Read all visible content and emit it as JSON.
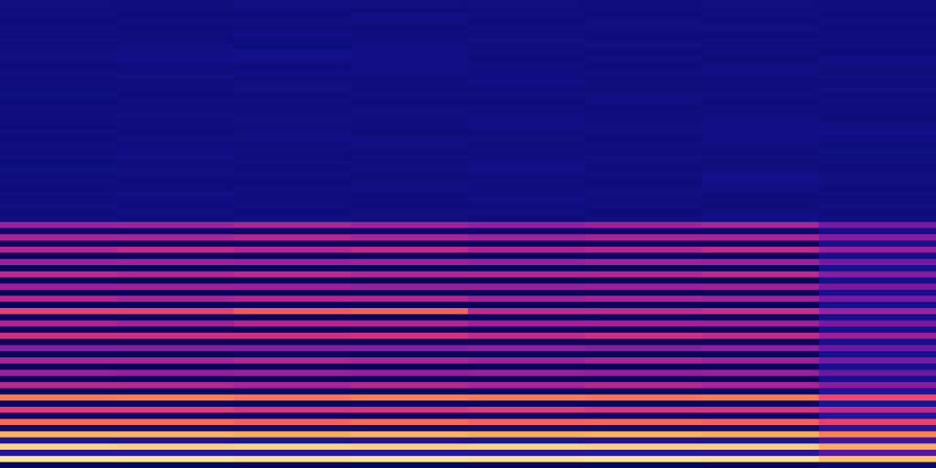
{
  "chart_data": {
    "type": "heatmap",
    "tick_labels": false,
    "grid": false,
    "x_categories": [
      null,
      null,
      null,
      null,
      null,
      null,
      null,
      null
    ],
    "y_categories": [
      null,
      null,
      null,
      null,
      null,
      null,
      null,
      null,
      null,
      null,
      null,
      null,
      null,
      null,
      null,
      null,
      null,
      null,
      null,
      null,
      null,
      null,
      null,
      null,
      null,
      null,
      null,
      null,
      null,
      null,
      null,
      null,
      null,
      null,
      null,
      null,
      null,
      null,
      null,
      null,
      null,
      null,
      null,
      null,
      null,
      null,
      null,
      null,
      null,
      null,
      null,
      null,
      null,
      null,
      null,
      null,
      null,
      null,
      null,
      null,
      null,
      null,
      null,
      null,
      null,
      null,
      null,
      null,
      null,
      null,
      null,
      null,
      null,
      null,
      null,
      null
    ],
    "value_range": [
      0,
      100
    ],
    "cells": [
      [
        6,
        6,
        6,
        6,
        6,
        6,
        6,
        10
      ],
      [
        96,
        96,
        95,
        96,
        95,
        96,
        95,
        88
      ],
      [
        25,
        24,
        25,
        24,
        25,
        24,
        25,
        35
      ],
      [
        92,
        91,
        92,
        91,
        92,
        91,
        91,
        84
      ],
      [
        20,
        20,
        20,
        20,
        20,
        20,
        20,
        30
      ],
      [
        85,
        85,
        84,
        85,
        84,
        85,
        84,
        76
      ],
      [
        12,
        12,
        12,
        12,
        12,
        12,
        12,
        24
      ],
      [
        72,
        72,
        70,
        72,
        70,
        71,
        70,
        62
      ],
      [
        10,
        10,
        10,
        10,
        10,
        10,
        10,
        22
      ],
      [
        60,
        60,
        58,
        58,
        60,
        58,
        58,
        52
      ],
      [
        8,
        8,
        8,
        8,
        8,
        8,
        8,
        20
      ],
      [
        75,
        76,
        74,
        76,
        75,
        74,
        75,
        64
      ],
      [
        8,
        8,
        8,
        8,
        8,
        8,
        8,
        20
      ],
      [
        50,
        50,
        48,
        50,
        48,
        50,
        48,
        42
      ],
      [
        6,
        6,
        6,
        6,
        6,
        6,
        6,
        18
      ],
      [
        45,
        44,
        45,
        44,
        45,
        44,
        45,
        38
      ],
      [
        6,
        6,
        6,
        6,
        6,
        6,
        6,
        18
      ],
      [
        48,
        48,
        50,
        48,
        46,
        48,
        46,
        40
      ],
      [
        6,
        6,
        6,
        6,
        6,
        6,
        6,
        18
      ],
      [
        42,
        42,
        42,
        42,
        44,
        42,
        44,
        38
      ],
      [
        6,
        6,
        6,
        6,
        6,
        6,
        6,
        18
      ],
      [
        55,
        54,
        55,
        56,
        52,
        54,
        52,
        45
      ],
      [
        6,
        6,
        6,
        6,
        6,
        6,
        6,
        18
      ],
      [
        48,
        46,
        50,
        50,
        46,
        46,
        46,
        40
      ],
      [
        6,
        6,
        6,
        6,
        6,
        6,
        6,
        18
      ],
      [
        62,
        62,
        68,
        70,
        52,
        52,
        54,
        45
      ],
      [
        6,
        6,
        6,
        6,
        6,
        6,
        6,
        18
      ],
      [
        50,
        48,
        50,
        50,
        46,
        48,
        46,
        40
      ],
      [
        6,
        6,
        6,
        6,
        6,
        6,
        6,
        18
      ],
      [
        45,
        46,
        45,
        44,
        44,
        45,
        46,
        40
      ],
      [
        6,
        6,
        6,
        6,
        6,
        6,
        6,
        18
      ],
      [
        52,
        50,
        52,
        50,
        50,
        50,
        52,
        42
      ],
      [
        6,
        6,
        6,
        6,
        6,
        6,
        6,
        18
      ],
      [
        45,
        46,
        45,
        46,
        44,
        46,
        45,
        40
      ],
      [
        7,
        7,
        7,
        7,
        7,
        7,
        7,
        18
      ],
      [
        50,
        52,
        50,
        52,
        48,
        50,
        52,
        44
      ],
      [
        8,
        8,
        8,
        8,
        8,
        8,
        8,
        18
      ],
      [
        48,
        48,
        50,
        48,
        46,
        48,
        48,
        42
      ],
      [
        10,
        10,
        10,
        10,
        10,
        10,
        10,
        18
      ],
      [
        45,
        46,
        48,
        46,
        44,
        46,
        48,
        40
      ],
      [
        15,
        14,
        16,
        15,
        14,
        15,
        16,
        15
      ],
      [
        14,
        15,
        14,
        16,
        15,
        14,
        15,
        14
      ],
      [
        16,
        14,
        15,
        14,
        14,
        15,
        14,
        16
      ],
      [
        14,
        15,
        14,
        15,
        16,
        14,
        15,
        14
      ],
      [
        15,
        16,
        15,
        14,
        15,
        16,
        14,
        15
      ],
      [
        14,
        14,
        15,
        16,
        14,
        15,
        15,
        14
      ],
      [
        15,
        14,
        14,
        15,
        15,
        14,
        17,
        16
      ],
      [
        14,
        15,
        16,
        14,
        14,
        15,
        17,
        15
      ],
      [
        16,
        15,
        14,
        15,
        16,
        14,
        15,
        14
      ],
      [
        14,
        14,
        15,
        14,
        15,
        15,
        14,
        15
      ],
      [
        15,
        16,
        14,
        15,
        14,
        16,
        15,
        14
      ],
      [
        14,
        15,
        15,
        14,
        15,
        14,
        14,
        16
      ],
      [
        15,
        14,
        14,
        16,
        14,
        15,
        15,
        14
      ],
      [
        14,
        15,
        16,
        15,
        15,
        14,
        16,
        15
      ],
      [
        16,
        14,
        15,
        14,
        14,
        16,
        16,
        17
      ],
      [
        14,
        15,
        14,
        15,
        16,
        15,
        17,
        16
      ],
      [
        15,
        14,
        16,
        14,
        15,
        14,
        15,
        14
      ],
      [
        14,
        16,
        15,
        15,
        14,
        15,
        14,
        15
      ],
      [
        15,
        14,
        14,
        16,
        15,
        14,
        15,
        14
      ],
      [
        14,
        15,
        15,
        14,
        14,
        16,
        14,
        15
      ],
      [
        16,
        14,
        14,
        15,
        15,
        15,
        15,
        14
      ],
      [
        14,
        15,
        16,
        14,
        14,
        14,
        14,
        16
      ],
      [
        15,
        14,
        15,
        15,
        16,
        15,
        15,
        14
      ],
      [
        14,
        16,
        14,
        14,
        15,
        14,
        14,
        15
      ],
      [
        15,
        14,
        15,
        16,
        14,
        15,
        16,
        14
      ],
      [
        14,
        15,
        14,
        15,
        15,
        14,
        15,
        15
      ],
      [
        16,
        17,
        17,
        15,
        14,
        15,
        14,
        16
      ],
      [
        15,
        16,
        17,
        16,
        15,
        14,
        15,
        14
      ],
      [
        14,
        15,
        14,
        15,
        14,
        16,
        14,
        15
      ],
      [
        15,
        14,
        15,
        14,
        16,
        15,
        15,
        14
      ],
      [
        14,
        15,
        16,
        15,
        14,
        14,
        14,
        15
      ],
      [
        15,
        14,
        14,
        14,
        15,
        15,
        16,
        14
      ],
      [
        14,
        16,
        15,
        15,
        14,
        16,
        14,
        15
      ],
      [
        15,
        14,
        14,
        16,
        15,
        14,
        15,
        14
      ],
      [
        14,
        15,
        15,
        14,
        14,
        15,
        14,
        15
      ],
      [
        15,
        14,
        16,
        15,
        15,
        14,
        15,
        14
      ]
    ]
  }
}
